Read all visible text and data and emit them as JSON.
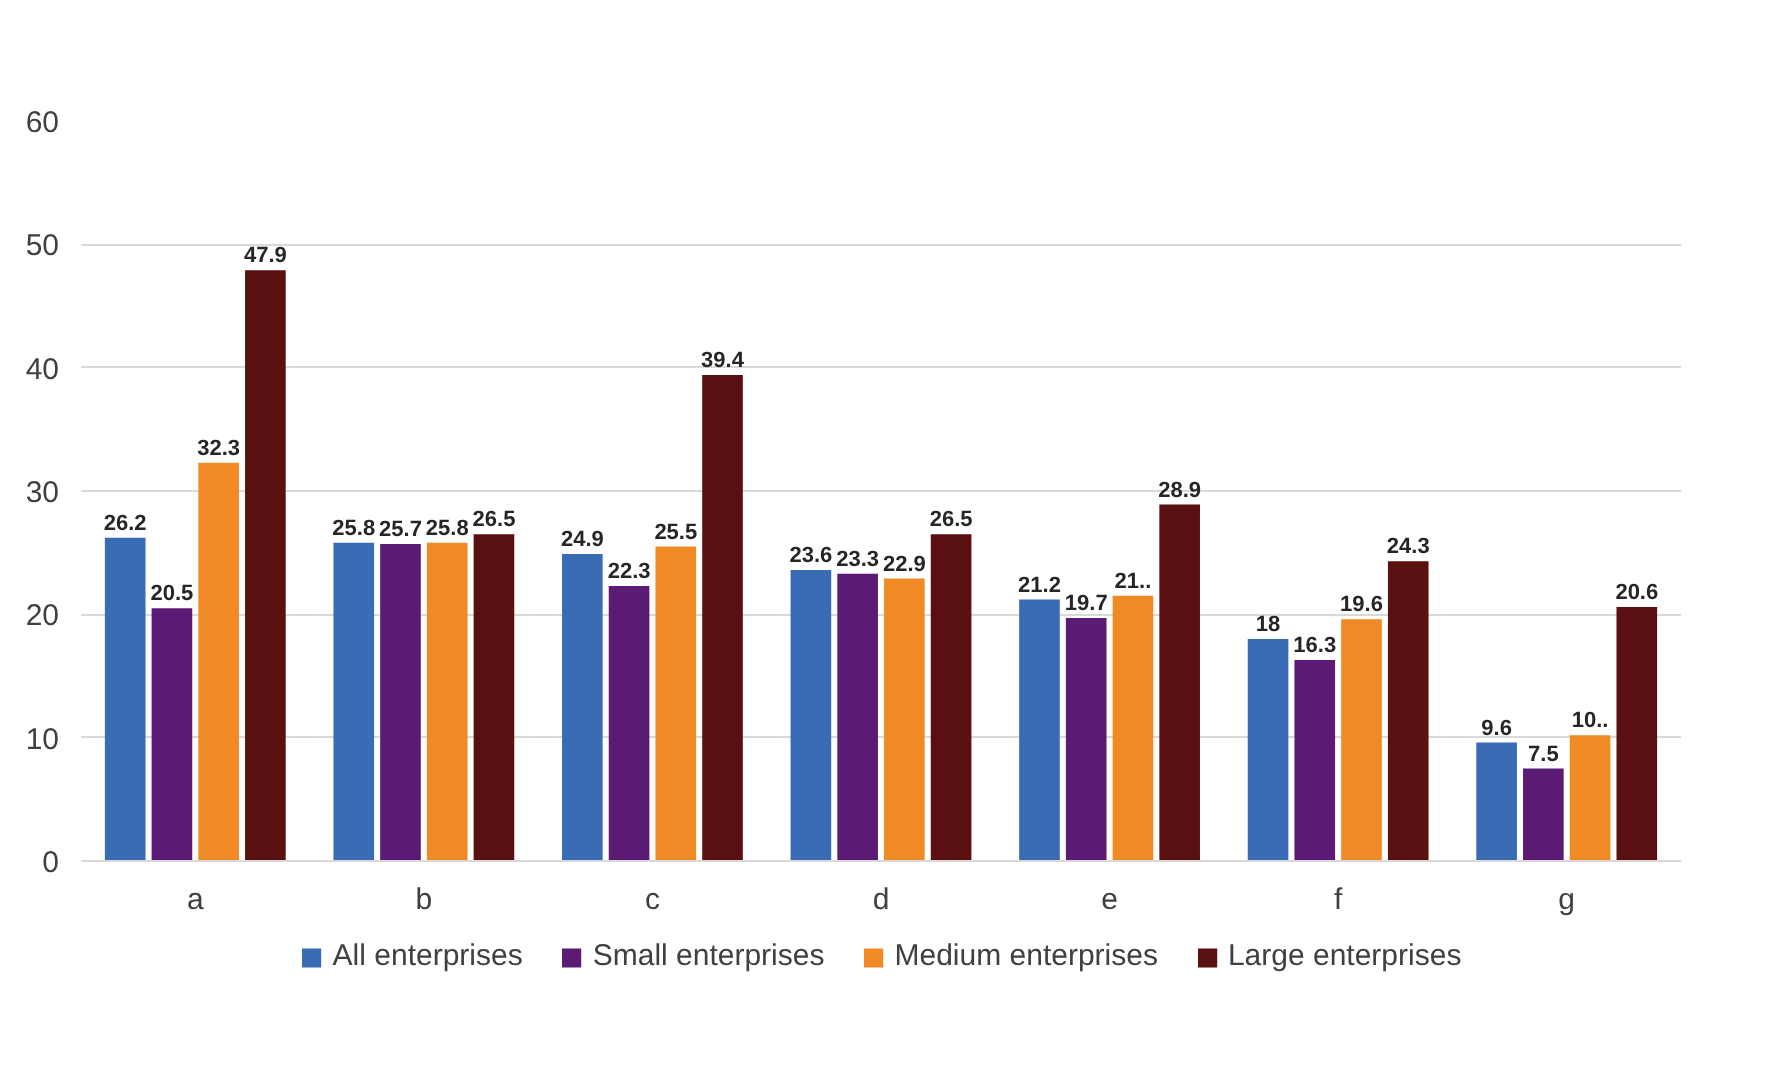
{
  "chart_data": {
    "type": "bar",
    "categories": [
      "a",
      "b",
      "c",
      "d",
      "e",
      "f",
      "g"
    ],
    "series": [
      {
        "name": "All enterprises",
        "color": "#3a6bb5",
        "values": [
          26.2,
          25.8,
          24.9,
          23.6,
          21.2,
          18,
          9.6
        ],
        "value_labels": [
          "26.2",
          "25.8",
          "24.9",
          "23.6",
          "21.2",
          "18",
          "9.6"
        ]
      },
      {
        "name": "Small enterprises",
        "color": "#5b1a74",
        "values": [
          20.5,
          25.7,
          22.3,
          23.3,
          19.7,
          16.3,
          7.5
        ],
        "value_labels": [
          "20.5",
          "25.7",
          "22.3",
          "23.3",
          "19.7",
          "16.3",
          "7.5"
        ]
      },
      {
        "name": "Medium enterprises",
        "color": "#f08a24",
        "values": [
          32.3,
          25.8,
          25.5,
          22.9,
          21.5,
          19.6,
          10.2
        ],
        "value_labels": [
          "32.3",
          "25.8",
          "25.5",
          "22.9",
          "21..",
          "19.6",
          "10.."
        ]
      },
      {
        "name": "Large enterprises",
        "color": "#5a1010",
        "values": [
          47.9,
          26.5,
          39.4,
          26.5,
          28.9,
          24.3,
          20.6
        ],
        "value_labels": [
          "47.9",
          "26.5",
          "39.4",
          "26.5",
          "28.9",
          "24.3",
          "20.6"
        ]
      }
    ],
    "ylim": [
      0,
      60
    ],
    "yticks": [
      0,
      10,
      20,
      30,
      40,
      50,
      60
    ],
    "grid": "y",
    "legend": "bottom"
  }
}
